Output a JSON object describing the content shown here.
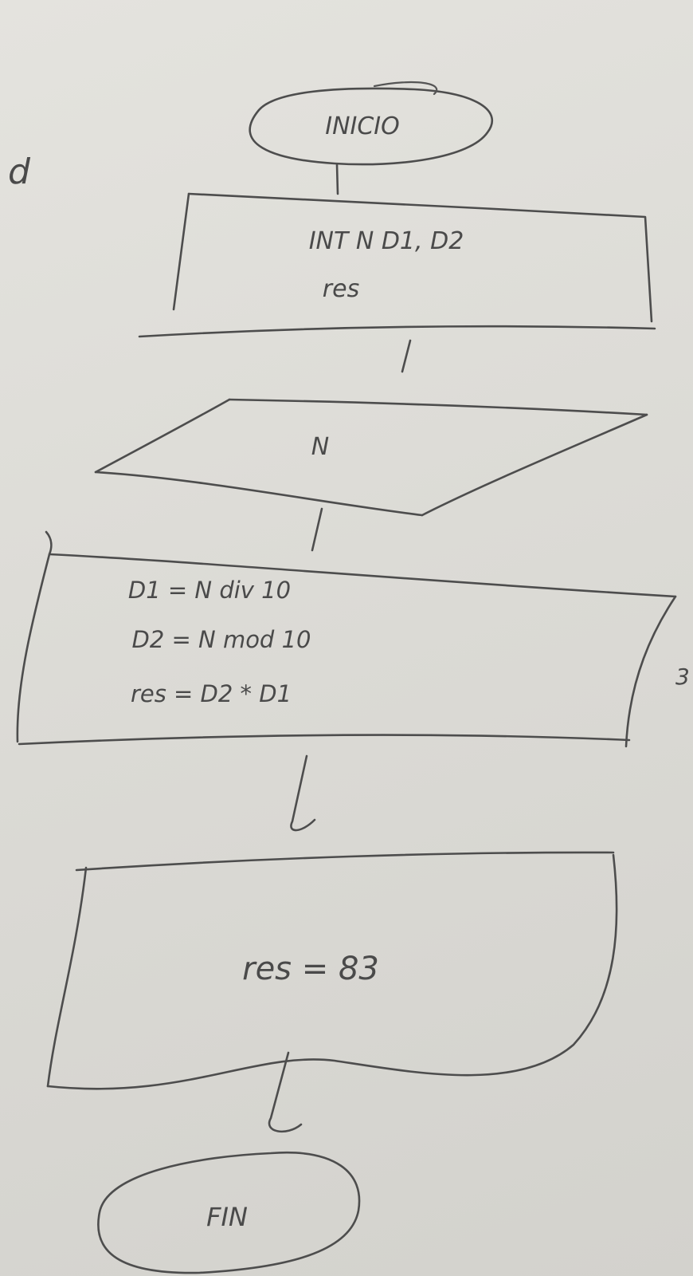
{
  "flowchart": {
    "start": {
      "label": "INICIO"
    },
    "declare": {
      "line1": "INT N D1, D2",
      "line2": "res"
    },
    "input": {
      "label": "N"
    },
    "process": {
      "line1": "D1 = N div 10",
      "line2": "D2 = N mod 10",
      "line3": "res = D2 * D1"
    },
    "output": {
      "label": "res = 83"
    },
    "end": {
      "label": "FIN"
    }
  },
  "margin_marks": {
    "left": "d",
    "right": "3"
  },
  "ink_color": "#4a4a4a"
}
